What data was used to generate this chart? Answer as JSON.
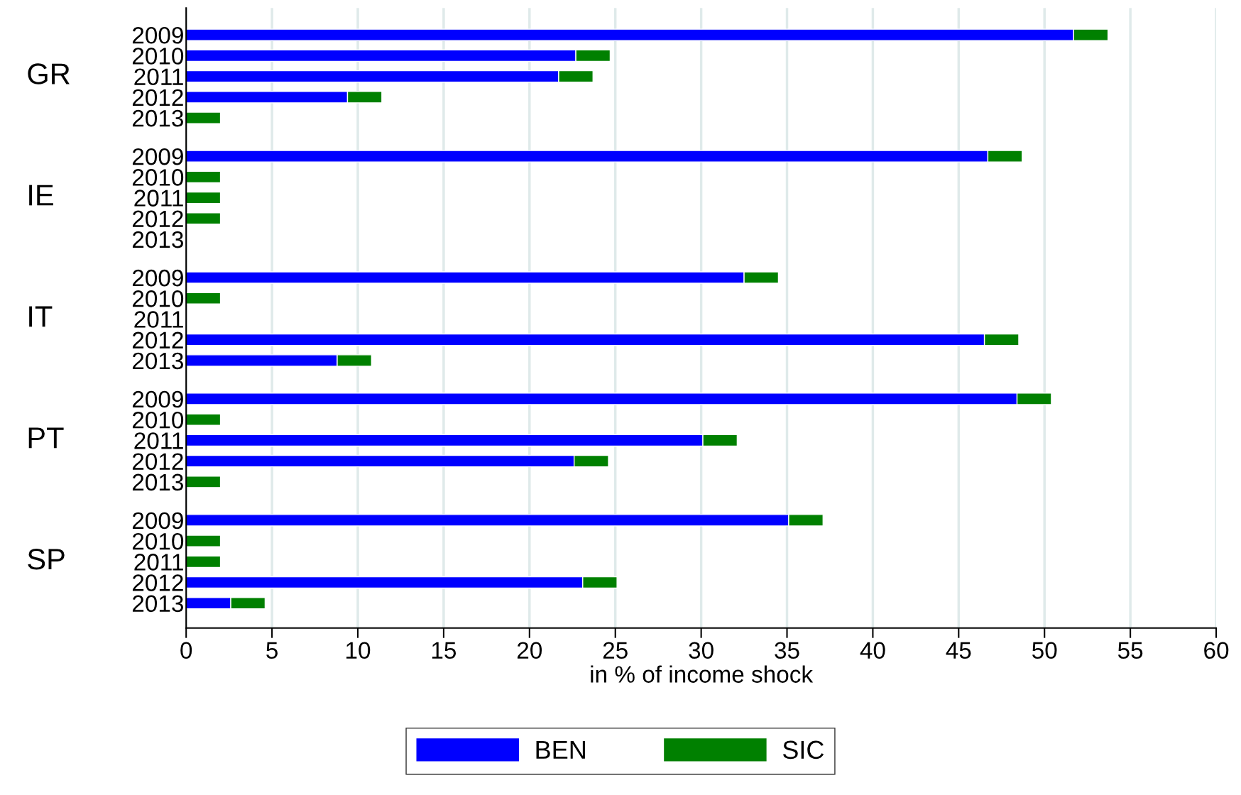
{
  "chart_data": {
    "type": "bar",
    "orientation": "horizontal",
    "stacked": true,
    "categories": [
      "2009",
      "2010",
      "2011",
      "2012",
      "2013",
      "2009",
      "2010",
      "2011",
      "2012",
      "2013",
      "2009",
      "2010",
      "2011",
      "2012",
      "2013",
      "2009",
      "2010",
      "2011",
      "2012",
      "2013",
      "2009",
      "2010",
      "2011",
      "2012",
      "2013"
    ],
    "series": [
      {
        "name": "BEN",
        "color": "#0000ff",
        "values": [
          51.7,
          22.7,
          21.7,
          9.4,
          0,
          46.7,
          0,
          0,
          0,
          null,
          32.5,
          0,
          null,
          46.5,
          8.8,
          48.4,
          0,
          30.1,
          22.6,
          0,
          35.1,
          0,
          0,
          23.1,
          2.6
        ]
      },
      {
        "name": "SIC",
        "color": "#008000",
        "values": [
          2,
          2,
          2,
          2,
          2,
          2,
          2,
          2,
          2,
          null,
          2,
          2,
          null,
          2,
          2,
          2,
          2,
          2,
          2,
          2,
          2,
          2,
          2,
          2,
          2
        ]
      }
    ],
    "annotations": [
      "GR",
      "IE",
      "IT",
      "PT",
      "SP"
    ],
    "xlabel": "in % of income shock",
    "xlim": [
      0,
      60
    ],
    "xticks": [
      0,
      5,
      10,
      15,
      20,
      25,
      30,
      35,
      40,
      45,
      50,
      55,
      60
    ],
    "grid": "x",
    "legend": "bottom"
  }
}
